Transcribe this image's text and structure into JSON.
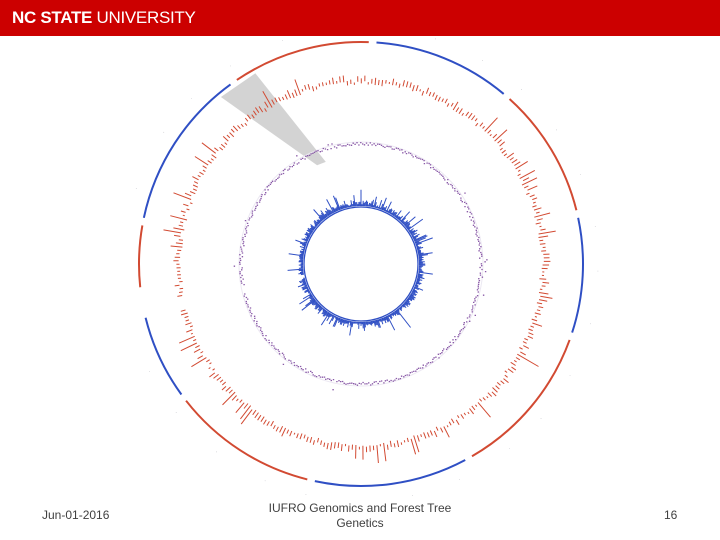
{
  "header": {
    "logo_bold": "NC STATE",
    "logo_regular": "UNIVERSITY",
    "banner_color": "#cc0000"
  },
  "footer": {
    "date": "Jun-01-2016",
    "title": "IUFRO Genomics and Forest Tree Genetics",
    "page_number": "16"
  },
  "figure": {
    "type": "circos-plot",
    "highlight_color": "#c8c8c8",
    "colors": {
      "red": "#d24a32",
      "blue": "#2f4fc4",
      "purple": "#8a5ba8"
    },
    "outer_segments": [
      {
        "color": "red",
        "start_deg": -96,
        "end_deg": -80
      },
      {
        "color": "blue",
        "start_deg": -78,
        "end_deg": -36
      },
      {
        "color": "red",
        "start_deg": -34,
        "end_deg": 2
      },
      {
        "color": "blue",
        "start_deg": 4,
        "end_deg": 40
      },
      {
        "color": "red",
        "start_deg": 42,
        "end_deg": 76
      },
      {
        "color": "blue",
        "start_deg": 78,
        "end_deg": 108
      },
      {
        "color": "red",
        "start_deg": 110,
        "end_deg": 150
      },
      {
        "color": "blue",
        "start_deg": 152,
        "end_deg": 192
      },
      {
        "color": "red",
        "start_deg": 194,
        "end_deg": 232
      },
      {
        "color": "blue",
        "start_deg": 234,
        "end_deg": 256
      }
    ]
  }
}
